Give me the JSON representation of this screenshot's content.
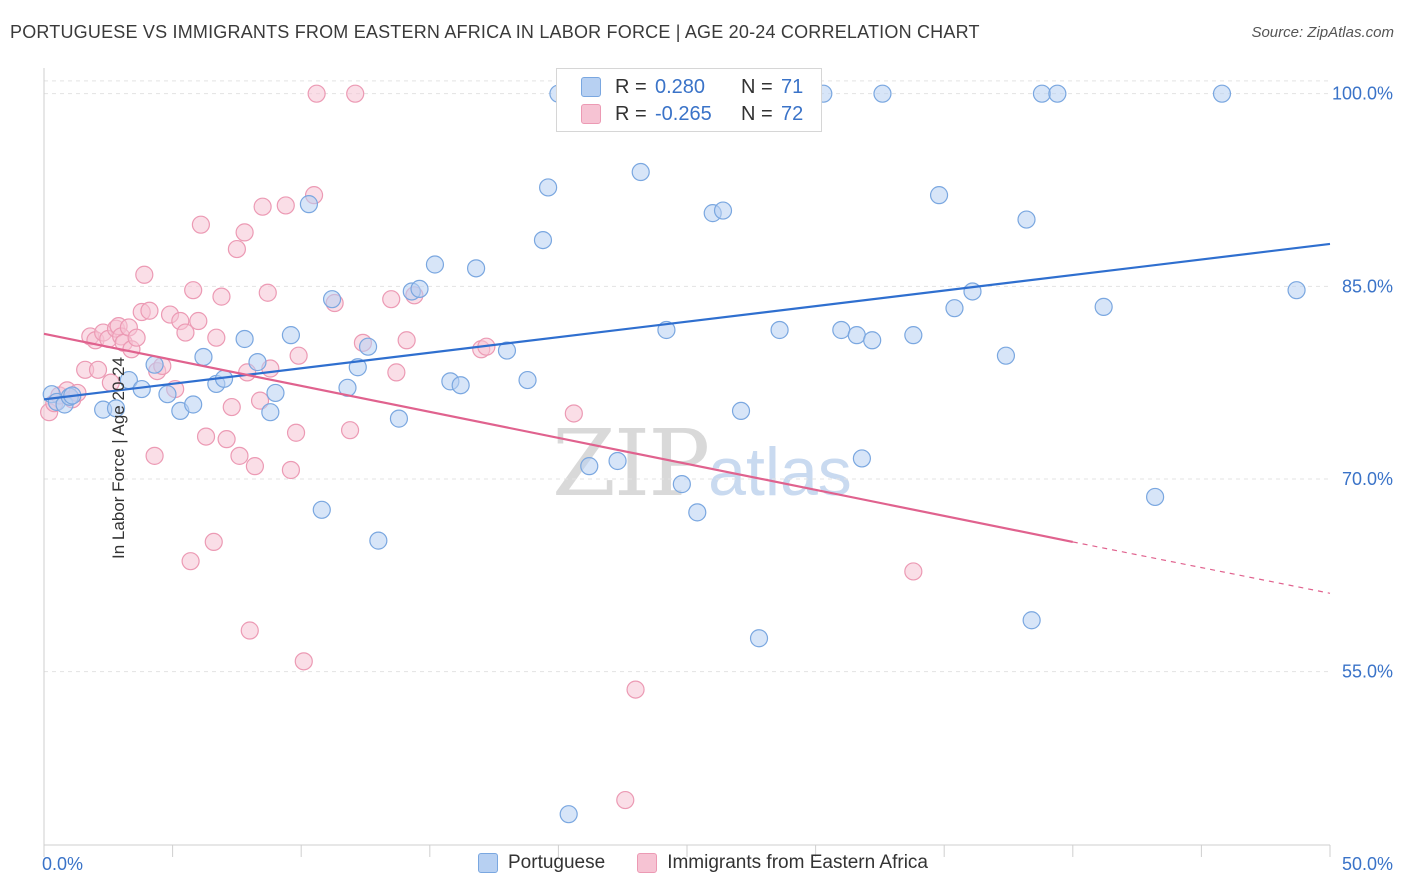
{
  "title": "PORTUGUESE VS IMMIGRANTS FROM EASTERN AFRICA IN LABOR FORCE | AGE 20-24 CORRELATION CHART",
  "source": "Source: ZipAtlas.com",
  "watermark": {
    "zip": "ZIP",
    "atlas": "atlas"
  },
  "legend": {
    "rows": [
      {
        "r_label": "R =",
        "r_value": "0.280",
        "n_label": "N =",
        "n_value": "71"
      },
      {
        "r_label": "R =",
        "r_value": "-0.265",
        "n_label": "N =",
        "n_value": "72"
      }
    ]
  },
  "colors": {
    "blue_fill": "#b7d0f2",
    "blue_stroke": "#7aa7e0",
    "blue_line": "#2f6fcf",
    "blue_text": "#3a73c8",
    "pink_fill": "#f6c3d3",
    "pink_stroke": "#ec9ab4",
    "pink_line": "#e0628e",
    "grid": "#e3e3e3",
    "axis_text": "#3a73c8"
  },
  "chart_data": {
    "type": "scatter",
    "title": "PORTUGUESE VS IMMIGRANTS FROM EASTERN AFRICA IN LABOR FORCE | AGE 20-24 CORRELATION CHART",
    "xlabel": "",
    "ylabel": "In Labor Force | Age 20-24",
    "xlim": [
      0,
      50
    ],
    "ylim": [
      41.5,
      102
    ],
    "x_tick_labels": [
      "0.0%",
      "50.0%"
    ],
    "y_ticks": [
      55,
      70,
      85,
      100
    ],
    "y_tick_labels": [
      "55.0%",
      "70.0%",
      "85.0%",
      "100.0%"
    ],
    "grid": true,
    "legend_position": "top-center",
    "series": [
      {
        "name": "Portuguese",
        "r": 0.28,
        "n": 71,
        "trend": {
          "x": [
            0,
            50
          ],
          "y": [
            76.2,
            88.3
          ]
        },
        "points": [
          [
            0.3,
            76.6
          ],
          [
            0.5,
            76.0
          ],
          [
            0.8,
            75.8
          ],
          [
            1.0,
            76.4
          ],
          [
            1.1,
            76.5
          ],
          [
            2.3,
            75.4
          ],
          [
            2.8,
            75.5
          ],
          [
            3.3,
            77.7
          ],
          [
            3.8,
            77.0
          ],
          [
            4.3,
            78.9
          ],
          [
            4.8,
            76.6
          ],
          [
            5.3,
            75.3
          ],
          [
            5.8,
            75.8
          ],
          [
            6.2,
            79.5
          ],
          [
            6.7,
            77.4
          ],
          [
            7.0,
            77.8
          ],
          [
            7.8,
            80.9
          ],
          [
            8.3,
            79.1
          ],
          [
            8.8,
            75.2
          ],
          [
            9.0,
            76.7
          ],
          [
            9.6,
            81.2
          ],
          [
            10.3,
            91.4
          ],
          [
            10.8,
            67.6
          ],
          [
            11.2,
            84.0
          ],
          [
            11.8,
            77.1
          ],
          [
            12.2,
            78.7
          ],
          [
            12.6,
            80.3
          ],
          [
            13.0,
            65.2
          ],
          [
            13.8,
            74.7
          ],
          [
            14.3,
            84.6
          ],
          [
            14.6,
            84.8
          ],
          [
            15.2,
            86.7
          ],
          [
            15.8,
            77.6
          ],
          [
            16.2,
            77.3
          ],
          [
            16.8,
            86.4
          ],
          [
            18.0,
            80.0
          ],
          [
            18.8,
            77.7
          ],
          [
            19.4,
            88.6
          ],
          [
            19.6,
            92.7
          ],
          [
            20.0,
            100.0
          ],
          [
            21.2,
            71.0
          ],
          [
            22.3,
            71.4
          ],
          [
            23.2,
            93.9
          ],
          [
            24.2,
            81.6
          ],
          [
            24.8,
            69.6
          ],
          [
            25.4,
            67.4
          ],
          [
            26.0,
            90.7
          ],
          [
            26.4,
            90.9
          ],
          [
            27.1,
            75.3
          ],
          [
            27.8,
            57.6
          ],
          [
            28.6,
            81.6
          ],
          [
            30.3,
            100.0
          ],
          [
            31.0,
            81.6
          ],
          [
            31.6,
            81.2
          ],
          [
            32.2,
            80.8
          ],
          [
            31.8,
            71.6
          ],
          [
            32.6,
            100.0
          ],
          [
            33.8,
            81.2
          ],
          [
            34.8,
            92.1
          ],
          [
            35.4,
            83.3
          ],
          [
            36.1,
            84.6
          ],
          [
            37.4,
            79.6
          ],
          [
            38.2,
            90.2
          ],
          [
            38.4,
            59.0
          ],
          [
            38.8,
            100.0
          ],
          [
            39.4,
            100.0
          ],
          [
            41.2,
            83.4
          ],
          [
            43.2,
            68.6
          ],
          [
            45.8,
            100.0
          ],
          [
            48.7,
            84.7
          ],
          [
            20.4,
            43.9
          ]
        ]
      },
      {
        "name": "Immigrants from Eastern Africa",
        "r": -0.265,
        "n": 72,
        "trend": {
          "x": [
            0,
            40
          ],
          "y": [
            81.3,
            65.1
          ]
        },
        "trend_dashed": {
          "x": [
            40,
            50
          ],
          "y": [
            65.1,
            61.1
          ]
        },
        "points": [
          [
            0.2,
            75.2
          ],
          [
            0.4,
            75.9
          ],
          [
            0.6,
            76.5
          ],
          [
            0.9,
            76.9
          ],
          [
            1.1,
            76.2
          ],
          [
            1.3,
            76.7
          ],
          [
            1.6,
            78.5
          ],
          [
            1.8,
            81.1
          ],
          [
            2.0,
            80.8
          ],
          [
            2.1,
            78.5
          ],
          [
            2.3,
            81.4
          ],
          [
            2.5,
            80.9
          ],
          [
            2.6,
            77.5
          ],
          [
            2.8,
            81.7
          ],
          [
            2.9,
            81.9
          ],
          [
            3.0,
            81.1
          ],
          [
            3.1,
            80.6
          ],
          [
            3.3,
            81.8
          ],
          [
            3.4,
            80.1
          ],
          [
            3.6,
            81.0
          ],
          [
            3.8,
            83.0
          ],
          [
            3.9,
            85.9
          ],
          [
            4.1,
            83.1
          ],
          [
            4.3,
            71.8
          ],
          [
            4.4,
            78.4
          ],
          [
            4.6,
            78.8
          ],
          [
            4.9,
            82.8
          ],
          [
            5.1,
            77.0
          ],
          [
            5.3,
            82.3
          ],
          [
            5.5,
            81.4
          ],
          [
            5.7,
            63.6
          ],
          [
            5.8,
            84.7
          ],
          [
            6.0,
            82.3
          ],
          [
            6.1,
            89.8
          ],
          [
            6.3,
            73.3
          ],
          [
            6.6,
            65.1
          ],
          [
            6.7,
            81.0
          ],
          [
            6.9,
            84.2
          ],
          [
            7.1,
            73.1
          ],
          [
            7.3,
            75.6
          ],
          [
            7.5,
            87.9
          ],
          [
            7.6,
            71.8
          ],
          [
            7.8,
            89.2
          ],
          [
            7.9,
            78.3
          ],
          [
            8.0,
            58.2
          ],
          [
            8.2,
            71.0
          ],
          [
            8.4,
            76.1
          ],
          [
            8.5,
            91.2
          ],
          [
            8.7,
            84.5
          ],
          [
            8.8,
            78.6
          ],
          [
            9.4,
            91.3
          ],
          [
            9.6,
            70.7
          ],
          [
            9.8,
            73.6
          ],
          [
            9.9,
            79.6
          ],
          [
            10.1,
            55.8
          ],
          [
            10.5,
            92.1
          ],
          [
            10.6,
            100.0
          ],
          [
            11.3,
            83.7
          ],
          [
            11.9,
            73.8
          ],
          [
            12.1,
            100.0
          ],
          [
            12.4,
            80.6
          ],
          [
            13.5,
            84.0
          ],
          [
            13.7,
            78.3
          ],
          [
            14.1,
            80.8
          ],
          [
            14.4,
            84.3
          ],
          [
            17.0,
            80.1
          ],
          [
            17.2,
            80.3
          ],
          [
            20.6,
            75.1
          ],
          [
            21.0,
            98.5
          ],
          [
            23.0,
            53.6
          ],
          [
            22.6,
            45.0
          ],
          [
            33.8,
            62.8
          ]
        ]
      }
    ]
  },
  "bottom_legend": [
    {
      "label": "Portuguese"
    },
    {
      "label": "Immigrants from Eastern Africa"
    }
  ]
}
